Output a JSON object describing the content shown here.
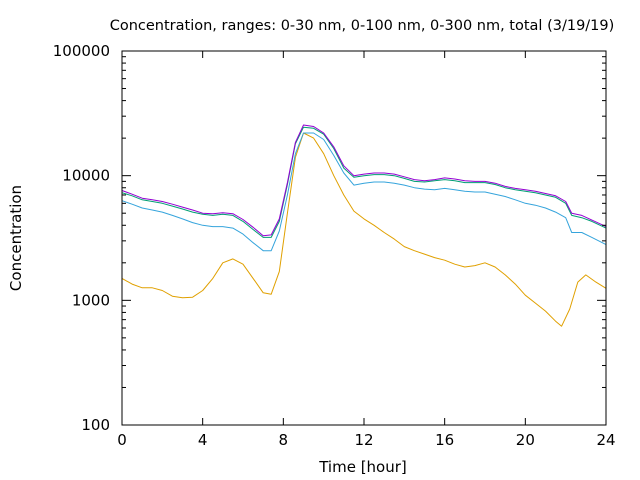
{
  "chart_data": {
    "type": "line",
    "title": "Concentration, ranges: 0-30 nm, 0-100 nm, 0-300 nm, total (3/19/19)",
    "xlabel": "Time [hour]",
    "ylabel": "Concentration",
    "xlim": [
      0,
      24
    ],
    "ylim": [
      100,
      100000
    ],
    "yscale": "log",
    "grid": false,
    "legend": "none",
    "x_ticks": [
      0,
      4,
      8,
      12,
      16,
      20,
      24
    ],
    "x_tick_labels": [
      "0",
      "4",
      "8",
      "12",
      "16",
      "20",
      "24"
    ],
    "y_ticks": [
      100,
      1000,
      10000,
      100000
    ],
    "y_tick_labels": [
      "100",
      "1000",
      "10000",
      "100000"
    ],
    "series": [
      {
        "color": "#e0a000",
        "points": [
          [
            0,
            1500
          ],
          [
            0.5,
            1350
          ],
          [
            1,
            1260
          ],
          [
            1.5,
            1260
          ],
          [
            2,
            1200
          ],
          [
            2.5,
            1080
          ],
          [
            3,
            1050
          ],
          [
            3.5,
            1060
          ],
          [
            4,
            1200
          ],
          [
            4.5,
            1500
          ],
          [
            5,
            2000
          ],
          [
            5.5,
            2150
          ],
          [
            6,
            1950
          ],
          [
            6.5,
            1500
          ],
          [
            7,
            1150
          ],
          [
            7.4,
            1120
          ],
          [
            7.8,
            1700
          ],
          [
            8.2,
            5000
          ],
          [
            8.6,
            14000
          ],
          [
            9,
            22000
          ],
          [
            9.5,
            20000
          ],
          [
            10,
            15000
          ],
          [
            10.5,
            10000
          ],
          [
            11,
            7000
          ],
          [
            11.5,
            5200
          ],
          [
            12,
            4500
          ],
          [
            12.5,
            4000
          ],
          [
            13,
            3500
          ],
          [
            13.5,
            3100
          ],
          [
            14,
            2700
          ],
          [
            14.5,
            2500
          ],
          [
            15,
            2350
          ],
          [
            15.5,
            2200
          ],
          [
            16,
            2100
          ],
          [
            16.5,
            1950
          ],
          [
            17,
            1850
          ],
          [
            17.5,
            1900
          ],
          [
            18,
            2000
          ],
          [
            18.5,
            1850
          ],
          [
            19,
            1600
          ],
          [
            19.5,
            1350
          ],
          [
            20,
            1100
          ],
          [
            20.5,
            950
          ],
          [
            21,
            820
          ],
          [
            21.5,
            680
          ],
          [
            21.8,
            620
          ],
          [
            22.2,
            850
          ],
          [
            22.6,
            1400
          ],
          [
            23,
            1600
          ],
          [
            23.5,
            1400
          ],
          [
            24,
            1250
          ]
        ]
      },
      {
        "color": "#35a4dc",
        "points": [
          [
            0,
            6300
          ],
          [
            0.5,
            5900
          ],
          [
            1,
            5500
          ],
          [
            1.5,
            5300
          ],
          [
            2,
            5100
          ],
          [
            2.5,
            4800
          ],
          [
            3,
            4500
          ],
          [
            3.5,
            4200
          ],
          [
            4,
            4000
          ],
          [
            4.5,
            3900
          ],
          [
            5,
            3900
          ],
          [
            5.5,
            3800
          ],
          [
            6,
            3400
          ],
          [
            6.5,
            2900
          ],
          [
            7,
            2500
          ],
          [
            7.4,
            2500
          ],
          [
            7.8,
            3600
          ],
          [
            8.2,
            7000
          ],
          [
            8.6,
            15000
          ],
          [
            9,
            22000
          ],
          [
            9.5,
            22000
          ],
          [
            10,
            19500
          ],
          [
            10.5,
            14500
          ],
          [
            11,
            10500
          ],
          [
            11.5,
            8400
          ],
          [
            12,
            8700
          ],
          [
            12.5,
            8900
          ],
          [
            13,
            8900
          ],
          [
            13.5,
            8700
          ],
          [
            14,
            8400
          ],
          [
            14.5,
            8000
          ],
          [
            15,
            7800
          ],
          [
            15.5,
            7700
          ],
          [
            16,
            7900
          ],
          [
            16.5,
            7700
          ],
          [
            17,
            7500
          ],
          [
            17.5,
            7400
          ],
          [
            18,
            7400
          ],
          [
            18.5,
            7100
          ],
          [
            19,
            6800
          ],
          [
            19.5,
            6400
          ],
          [
            20,
            6000
          ],
          [
            20.5,
            5800
          ],
          [
            21,
            5500
          ],
          [
            21.5,
            5100
          ],
          [
            22,
            4600
          ],
          [
            22.3,
            3500
          ],
          [
            22.8,
            3500
          ],
          [
            23.3,
            3200
          ],
          [
            24,
            2800
          ]
        ]
      },
      {
        "color": "#009e73",
        "points": [
          [
            0,
            7300
          ],
          [
            0.5,
            6900
          ],
          [
            1,
            6400
          ],
          [
            1.5,
            6200
          ],
          [
            2,
            6000
          ],
          [
            2.5,
            5700
          ],
          [
            3,
            5400
          ],
          [
            3.5,
            5100
          ],
          [
            4,
            4900
          ],
          [
            4.5,
            4800
          ],
          [
            5,
            4900
          ],
          [
            5.5,
            4800
          ],
          [
            6,
            4300
          ],
          [
            6.5,
            3700
          ],
          [
            7,
            3200
          ],
          [
            7.4,
            3200
          ],
          [
            7.8,
            4300
          ],
          [
            8.2,
            8500
          ],
          [
            8.6,
            18000
          ],
          [
            9,
            24500
          ],
          [
            9.5,
            24000
          ],
          [
            10,
            21500
          ],
          [
            10.5,
            16500
          ],
          [
            11,
            11500
          ],
          [
            11.5,
            9700
          ],
          [
            12,
            10000
          ],
          [
            12.5,
            10200
          ],
          [
            13,
            10200
          ],
          [
            13.5,
            10000
          ],
          [
            14,
            9500
          ],
          [
            14.5,
            9000
          ],
          [
            15,
            8900
          ],
          [
            15.5,
            9100
          ],
          [
            16,
            9300
          ],
          [
            16.5,
            9100
          ],
          [
            17,
            8800
          ],
          [
            17.5,
            8800
          ],
          [
            18,
            8800
          ],
          [
            18.5,
            8500
          ],
          [
            19,
            8000
          ],
          [
            19.5,
            7700
          ],
          [
            20,
            7500
          ],
          [
            20.5,
            7300
          ],
          [
            21,
            7000
          ],
          [
            21.5,
            6700
          ],
          [
            22,
            6000
          ],
          [
            22.3,
            4800
          ],
          [
            22.8,
            4600
          ],
          [
            23.3,
            4300
          ],
          [
            24,
            3800
          ]
        ]
      },
      {
        "color": "#9400d3",
        "points": [
          [
            0,
            7600
          ],
          [
            0.5,
            7100
          ],
          [
            1,
            6600
          ],
          [
            1.5,
            6400
          ],
          [
            2,
            6200
          ],
          [
            2.5,
            5900
          ],
          [
            3,
            5600
          ],
          [
            3.5,
            5300
          ],
          [
            4,
            5000
          ],
          [
            4.5,
            4950
          ],
          [
            5,
            5050
          ],
          [
            5.5,
            4950
          ],
          [
            6,
            4450
          ],
          [
            6.5,
            3850
          ],
          [
            7,
            3300
          ],
          [
            7.4,
            3350
          ],
          [
            7.8,
            4500
          ],
          [
            8.2,
            8800
          ],
          [
            8.6,
            18500
          ],
          [
            9,
            25500
          ],
          [
            9.5,
            24800
          ],
          [
            10,
            22000
          ],
          [
            10.5,
            17000
          ],
          [
            11,
            12000
          ],
          [
            11.5,
            10000
          ],
          [
            12,
            10300
          ],
          [
            12.5,
            10500
          ],
          [
            13,
            10500
          ],
          [
            13.5,
            10300
          ],
          [
            14,
            9800
          ],
          [
            14.5,
            9300
          ],
          [
            15,
            9100
          ],
          [
            15.5,
            9300
          ],
          [
            16,
            9600
          ],
          [
            16.5,
            9400
          ],
          [
            17,
            9100
          ],
          [
            17.5,
            9000
          ],
          [
            18,
            9000
          ],
          [
            18.5,
            8700
          ],
          [
            19,
            8200
          ],
          [
            19.5,
            7900
          ],
          [
            20,
            7700
          ],
          [
            20.5,
            7500
          ],
          [
            21,
            7200
          ],
          [
            21.5,
            6900
          ],
          [
            22,
            6200
          ],
          [
            22.3,
            5000
          ],
          [
            22.8,
            4800
          ],
          [
            23.3,
            4400
          ],
          [
            24,
            3900
          ]
        ]
      }
    ]
  }
}
